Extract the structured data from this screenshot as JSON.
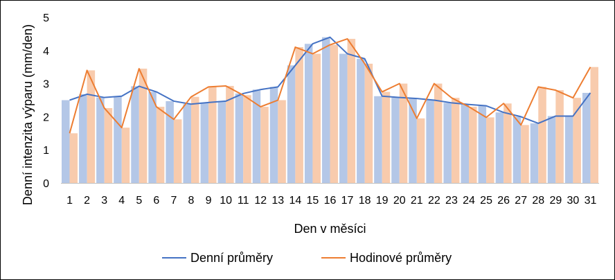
{
  "chart_data": {
    "type": "bar",
    "xlabel": "Den v měsíci",
    "ylabel": "Denní intenzita výparu (mm/den)",
    "ylim": [
      0,
      5
    ],
    "yticks": [
      0,
      1,
      2,
      3,
      4,
      5
    ],
    "grid": false,
    "legend_position": "bottom",
    "categories": [
      "1",
      "2",
      "3",
      "4",
      "5",
      "6",
      "7",
      "8",
      "9",
      "10",
      "11",
      "12",
      "13",
      "14",
      "15",
      "16",
      "17",
      "18",
      "19",
      "20",
      "21",
      "22",
      "23",
      "24",
      "25",
      "26",
      "27",
      "28",
      "29",
      "30",
      "31"
    ],
    "series": [
      {
        "name": "Denní průměry",
        "kind": "bar",
        "color": "#b4c7e7",
        "values": [
          2.5,
          2.68,
          2.58,
          2.62,
          2.92,
          2.75,
          2.47,
          2.38,
          2.43,
          2.47,
          2.7,
          2.82,
          2.9,
          3.55,
          4.2,
          4.4,
          3.9,
          3.75,
          2.62,
          2.58,
          2.55,
          2.5,
          2.42,
          2.37,
          2.33,
          2.13,
          2.0,
          1.8,
          2.02,
          2.02,
          2.72
        ]
      },
      {
        "name": "Hodinové průměry",
        "kind": "bar",
        "color": "#f8cbad",
        "values": [
          1.5,
          3.4,
          2.26,
          1.67,
          3.45,
          2.3,
          1.92,
          2.6,
          2.9,
          2.93,
          2.65,
          2.3,
          2.5,
          4.1,
          3.9,
          4.17,
          4.35,
          3.6,
          2.75,
          3.0,
          1.95,
          3.0,
          2.57,
          2.3,
          1.98,
          2.4,
          1.75,
          2.9,
          2.8,
          2.57,
          3.5
        ]
      },
      {
        "name": "Denní průměry",
        "kind": "line",
        "color": "#4472c4",
        "values": [
          2.5,
          2.68,
          2.58,
          2.62,
          2.92,
          2.75,
          2.47,
          2.38,
          2.43,
          2.47,
          2.7,
          2.82,
          2.9,
          3.55,
          4.2,
          4.4,
          3.9,
          3.75,
          2.62,
          2.58,
          2.55,
          2.5,
          2.42,
          2.37,
          2.33,
          2.13,
          2.0,
          1.8,
          2.02,
          2.02,
          2.72
        ]
      },
      {
        "name": "Hodinové průměry",
        "kind": "line",
        "color": "#ed7d31",
        "values": [
          1.5,
          3.4,
          2.26,
          1.67,
          3.45,
          2.3,
          1.92,
          2.6,
          2.9,
          2.93,
          2.65,
          2.3,
          2.5,
          4.1,
          3.9,
          4.17,
          4.35,
          3.6,
          2.75,
          3.0,
          1.95,
          3.0,
          2.57,
          2.3,
          1.98,
          2.4,
          1.75,
          2.9,
          2.8,
          2.57,
          3.5
        ]
      }
    ],
    "legend": [
      {
        "label": "Denní průměry",
        "color": "#4472c4"
      },
      {
        "label": "Hodinové průměry",
        "color": "#ed7d31"
      }
    ]
  }
}
